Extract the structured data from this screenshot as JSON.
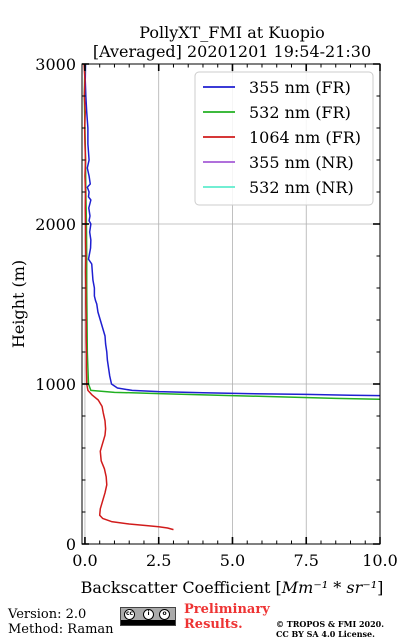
{
  "chart_data": {
    "type": "line",
    "title": "PollyXT_FMI at Kuopio",
    "subtitle": "[Averaged] 20201201 19:54-21:30",
    "xlabel": "Backscatter Coefficient [",
    "xlabel_math": "Mm⁻¹ * sr⁻¹",
    "xlabel_end": "]",
    "ylabel": "Height (m)",
    "xlim": [
      -0.1,
      10.0
    ],
    "ylim": [
      0,
      3000
    ],
    "xticks": [
      0.0,
      2.5,
      5.0,
      7.5,
      10.0
    ],
    "xtick_labels": [
      "0.0",
      "2.5",
      "5.0",
      "7.5",
      "10.0"
    ],
    "yticks": [
      0,
      1000,
      2000,
      3000
    ],
    "ytick_labels": [
      "0",
      "1000",
      "2000",
      "3000"
    ],
    "grid": true,
    "legend_position": "top-right",
    "series": [
      {
        "name": "355 nm (FR)",
        "color": "#1f1fd1",
        "points": [
          [
            0.02,
            3000
          ],
          [
            0.01,
            2900
          ],
          [
            0.03,
            2800
          ],
          [
            0.06,
            2700
          ],
          [
            0.1,
            2600
          ],
          [
            0.1,
            2500
          ],
          [
            0.14,
            2400
          ],
          [
            0.08,
            2350
          ],
          [
            0.14,
            2300
          ],
          [
            0.18,
            2250
          ],
          [
            0.08,
            2230
          ],
          [
            0.14,
            2200
          ],
          [
            0.12,
            2170
          ],
          [
            0.2,
            2150
          ],
          [
            0.13,
            2100
          ],
          [
            0.17,
            2050
          ],
          [
            0.14,
            2020
          ],
          [
            0.2,
            2000
          ],
          [
            0.16,
            1950
          ],
          [
            0.2,
            1900
          ],
          [
            0.19,
            1850
          ],
          [
            0.15,
            1810
          ],
          [
            0.12,
            1780
          ],
          [
            0.23,
            1750
          ],
          [
            0.25,
            1700
          ],
          [
            0.27,
            1650
          ],
          [
            0.32,
            1600
          ],
          [
            0.32,
            1550
          ],
          [
            0.36,
            1520
          ],
          [
            0.4,
            1500
          ],
          [
            0.44,
            1450
          ],
          [
            0.52,
            1400
          ],
          [
            0.6,
            1350
          ],
          [
            0.68,
            1300
          ],
          [
            0.7,
            1250
          ],
          [
            0.74,
            1200
          ],
          [
            0.76,
            1150
          ],
          [
            0.8,
            1100
          ],
          [
            0.84,
            1050
          ],
          [
            0.9,
            1000
          ],
          [
            1.1,
            975
          ],
          [
            1.6,
            960
          ],
          [
            2.5,
            952
          ],
          [
            4.0,
            945
          ],
          [
            5.5,
            940
          ],
          [
            7.5,
            935
          ],
          [
            9.0,
            930
          ],
          [
            10.0,
            927
          ]
        ]
      },
      {
        "name": "532 nm (FR)",
        "color": "#22b022",
        "points": [
          [
            0.0,
            3000
          ],
          [
            -0.02,
            2800
          ],
          [
            0.0,
            2600
          ],
          [
            0.02,
            2400
          ],
          [
            0.03,
            2200
          ],
          [
            0.05,
            2000
          ],
          [
            0.06,
            1800
          ],
          [
            0.06,
            1600
          ],
          [
            0.07,
            1400
          ],
          [
            0.08,
            1200
          ],
          [
            0.1,
            1100
          ],
          [
            0.12,
            1000
          ],
          [
            0.2,
            960
          ],
          [
            1.0,
            948
          ],
          [
            2.5,
            940
          ],
          [
            4.5,
            930
          ],
          [
            6.5,
            920
          ],
          [
            8.5,
            910
          ],
          [
            10.0,
            905
          ]
        ]
      },
      {
        "name": "1064 nm (FR)",
        "color": "#d11b1b",
        "points": [
          [
            -0.03,
            3000
          ],
          [
            0.0,
            2900
          ],
          [
            -0.02,
            2800
          ],
          [
            0.01,
            2700
          ],
          [
            -0.01,
            2600
          ],
          [
            0.0,
            2500
          ],
          [
            0.02,
            2400
          ],
          [
            0.0,
            2300
          ],
          [
            0.02,
            2200
          ],
          [
            0.01,
            2100
          ],
          [
            0.02,
            2000
          ],
          [
            0.02,
            1900
          ],
          [
            0.03,
            1800
          ],
          [
            0.02,
            1700
          ],
          [
            0.03,
            1600
          ],
          [
            0.03,
            1500
          ],
          [
            0.04,
            1400
          ],
          [
            0.04,
            1300
          ],
          [
            0.05,
            1200
          ],
          [
            0.05,
            1100
          ],
          [
            0.06,
            1000
          ],
          [
            0.1,
            960
          ],
          [
            0.25,
            930
          ],
          [
            0.45,
            900
          ],
          [
            0.58,
            860
          ],
          [
            0.62,
            820
          ],
          [
            0.68,
            770
          ],
          [
            0.7,
            720
          ],
          [
            0.68,
            680
          ],
          [
            0.6,
            630
          ],
          [
            0.52,
            580
          ],
          [
            0.55,
            520
          ],
          [
            0.66,
            470
          ],
          [
            0.72,
            420
          ],
          [
            0.74,
            370
          ],
          [
            0.68,
            320
          ],
          [
            0.6,
            270
          ],
          [
            0.52,
            220
          ],
          [
            0.5,
            180
          ],
          [
            0.6,
            160
          ],
          [
            0.9,
            140
          ],
          [
            1.5,
            125
          ],
          [
            2.1,
            115
          ],
          [
            2.5,
            108
          ],
          [
            2.8,
            100
          ],
          [
            3.0,
            90
          ]
        ]
      },
      {
        "name": "355 nm (NR)",
        "color": "#a55bd6",
        "points": []
      },
      {
        "name": "532 nm (NR)",
        "color": "#5eeccd",
        "points": []
      }
    ]
  },
  "footer": {
    "version": "Version: 2.0",
    "method": "Method: Raman",
    "license_icons": [
      "creative-commons-icon",
      "attribution-icon",
      "share-alike-icon"
    ],
    "preliminary_line1": "Preliminary",
    "preliminary_line2": "Results.",
    "copyright_line1": "© TROPOS & FMI 2020.",
    "copyright_line2": "CC BY SA 4.0 License."
  }
}
